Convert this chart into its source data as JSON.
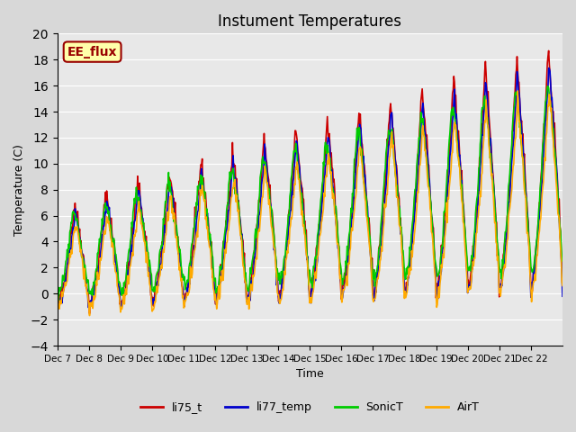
{
  "title": "Instument Temperatures",
  "ylabel": "Temperature (C)",
  "xlabel": "Time",
  "ylim": [
    -4,
    20
  ],
  "yticks": [
    -4,
    -2,
    0,
    2,
    4,
    6,
    8,
    10,
    12,
    14,
    16,
    18,
    20
  ],
  "xtick_labels": [
    "Dec 7",
    "Dec 8",
    "Dec 9",
    "Dec 10",
    "Dec 11",
    "Dec 12",
    "Dec 13",
    "Dec 14",
    "Dec 15",
    "Dec 16",
    "Dec 17",
    "Dec 18",
    "Dec 19",
    "Dec 20",
    "Dec 21",
    "Dec 22"
  ],
  "series_colors": {
    "li75_t": "#cc0000",
    "li77_temp": "#0000cc",
    "SonicT": "#00cc00",
    "AirT": "#ffaa00"
  },
  "legend_entries": [
    "li75_t",
    "li77_temp",
    "SonicT",
    "AirT"
  ],
  "annotation_text": "EE_flux",
  "annotation_bg": "#ffffaa",
  "annotation_border": "#990000",
  "background_color": "#e8e8e8",
  "linewidth": 1.2,
  "n_days": 16,
  "points_per_day": 48
}
